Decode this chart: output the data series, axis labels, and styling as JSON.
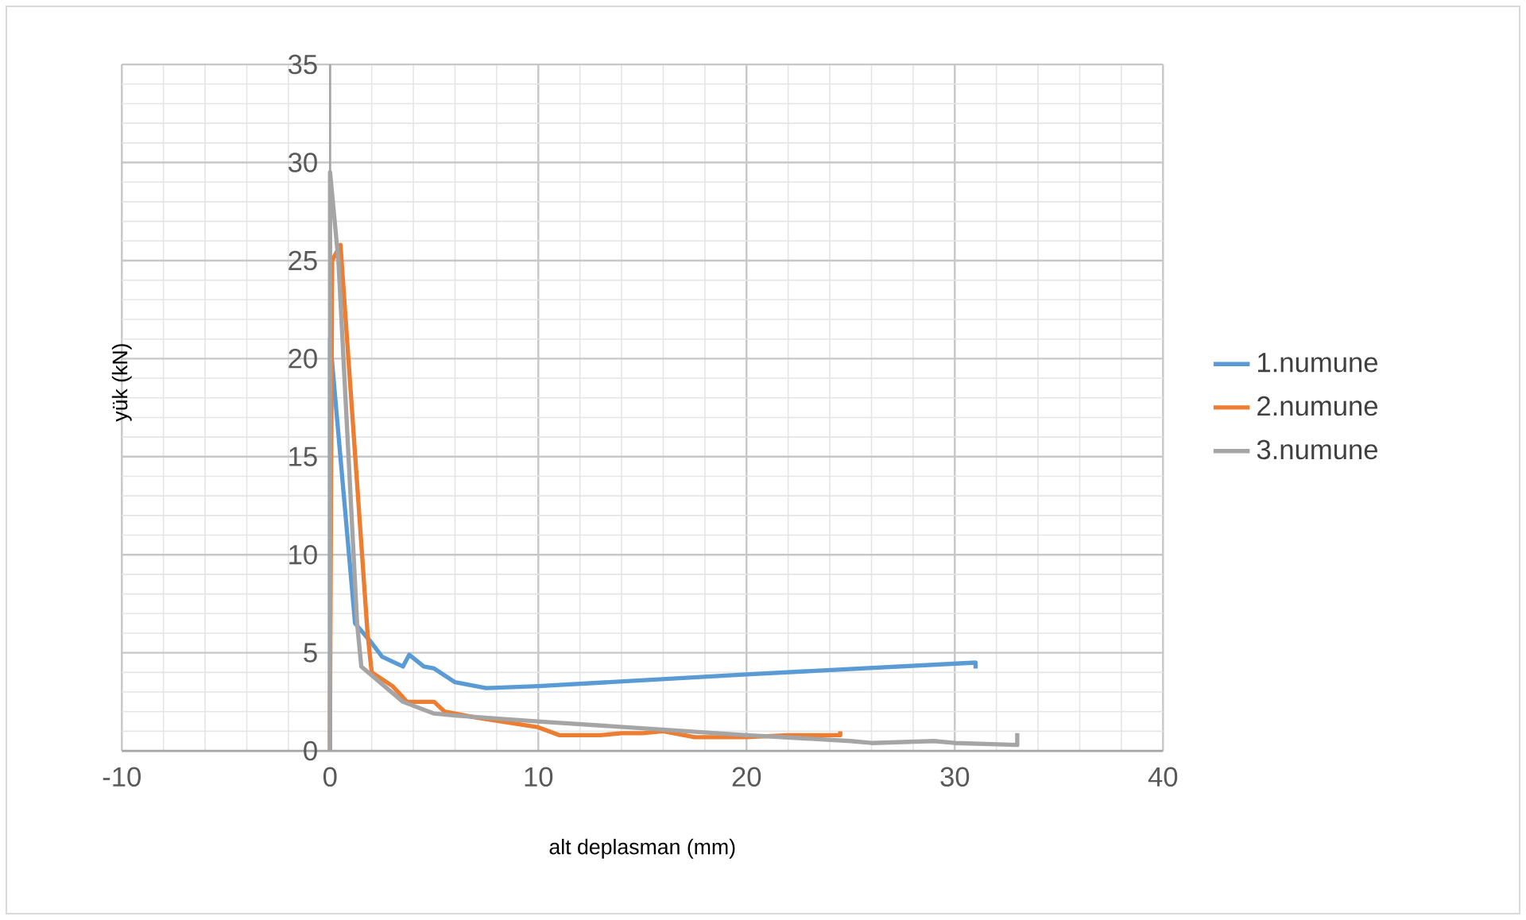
{
  "chart_data": {
    "type": "line",
    "xlabel": "alt deplasman (mm)",
    "ylabel": "yük (kN)",
    "xlim": [
      -10,
      40
    ],
    "xticks": [
      -10,
      0,
      10,
      20,
      30,
      40
    ],
    "ylim": [
      0,
      35
    ],
    "yticks": [
      0,
      5,
      10,
      15,
      20,
      25,
      30,
      35
    ],
    "grid": true,
    "legend": "right",
    "marker": "none",
    "line_style": "solid",
    "series": [
      {
        "name": "1.numune",
        "color": "#5b9bd5",
        "x": [
          0,
          0,
          1.2,
          2,
          2.5,
          3.5,
          3.8,
          4.5,
          5,
          6,
          7.5,
          10,
          20,
          31,
          31
        ],
        "values": [
          0,
          21,
          6.5,
          5.5,
          4.8,
          4.3,
          4.9,
          4.3,
          4.2,
          3.5,
          3.2,
          3.3,
          3.9,
          4.5,
          4.2
        ]
      },
      {
        "name": "2.numune",
        "color": "#ed7d31",
        "x": [
          0,
          0,
          0.1,
          0.5,
          1.8,
          2,
          3,
          3.7,
          5,
          5.5,
          7,
          10,
          11,
          13,
          14,
          15,
          16,
          17.5,
          20,
          22,
          24.5,
          24.5
        ],
        "values": [
          0,
          2,
          25,
          25.8,
          6,
          4,
          3.3,
          2.5,
          2.5,
          2,
          1.7,
          1.2,
          0.8,
          0.8,
          0.9,
          0.9,
          1,
          0.7,
          0.7,
          0.8,
          0.8,
          1
        ]
      },
      {
        "name": "3.numune",
        "color": "#a5a5a5",
        "x": [
          0,
          0,
          0.4,
          1.3,
          1.5,
          3.5,
          5,
          6,
          10,
          20,
          25,
          26,
          29,
          30,
          33,
          33
        ],
        "values": [
          0,
          29.5,
          25,
          6.5,
          4.3,
          2.5,
          1.9,
          1.8,
          1.5,
          0.8,
          0.5,
          0.4,
          0.5,
          0.4,
          0.3,
          0.9
        ]
      }
    ]
  }
}
